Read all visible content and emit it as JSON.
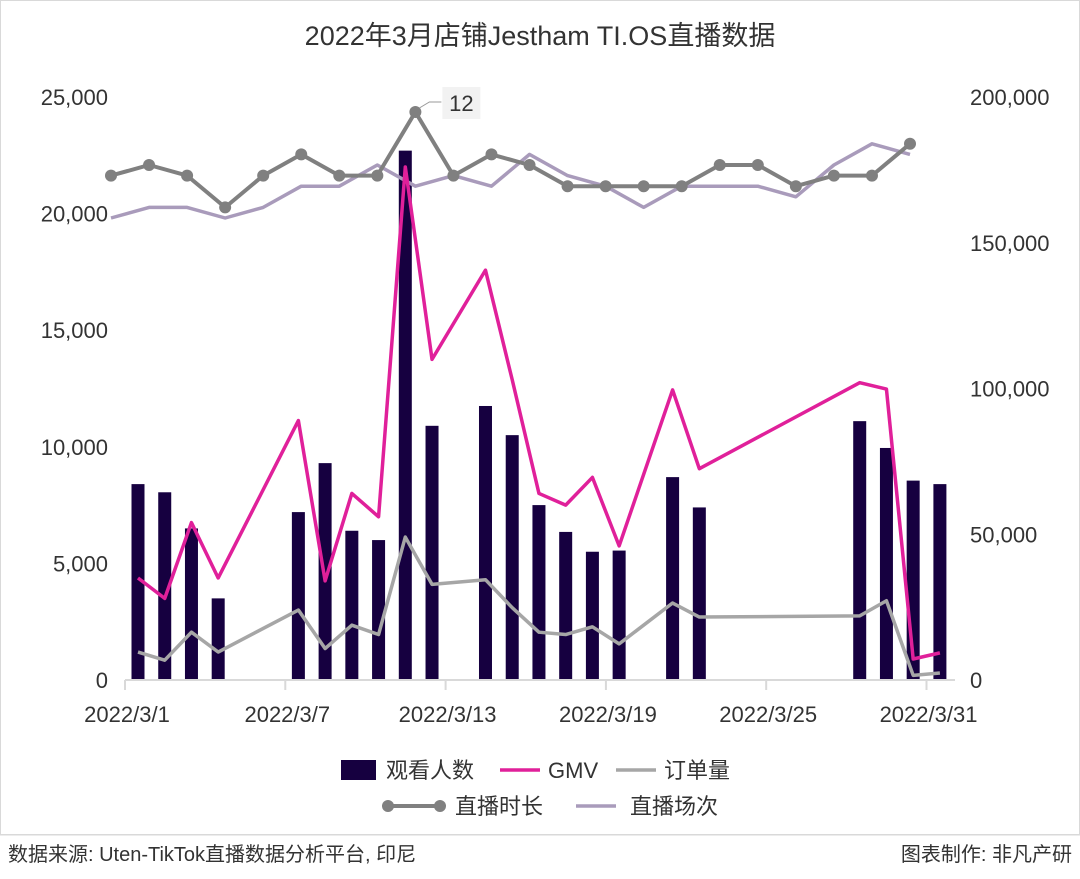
{
  "chart_data": {
    "type": "bar+line",
    "title": "2022年3月店铺Jestham TI.OS直播数据",
    "x_tick_labels": [
      "2022/3/1",
      "2022/3/7",
      "2022/3/13",
      "2022/3/19",
      "2022/3/25",
      "2022/3/31"
    ],
    "left_axis": {
      "ylim": [
        0,
        25000
      ],
      "tick_labels": [
        "0",
        "5,000",
        "10,000",
        "15,000",
        "20,000",
        "25,000"
      ]
    },
    "right_axis": {
      "ylim": [
        0,
        200000
      ],
      "tick_labels": [
        "0",
        "50,000",
        "100,000",
        "150,000",
        "200,000"
      ]
    },
    "days": [
      1,
      2,
      3,
      4,
      7,
      8,
      9,
      10,
      11,
      12,
      14,
      15,
      16,
      17,
      18,
      19,
      21,
      22,
      28,
      29,
      30,
      31
    ],
    "series": [
      {
        "name": "观看人数",
        "type": "bar",
        "axis": "left",
        "color": "#160040",
        "values": [
          8400,
          8050,
          6500,
          3500,
          7200,
          9300,
          6400,
          6000,
          22700,
          10900,
          11750,
          10500,
          7500,
          6350,
          5500,
          5550,
          8700,
          7400,
          11100,
          9950,
          8550,
          8400
        ]
      },
      {
        "name": "GMV",
        "type": "line",
        "axis": "right",
        "color": "#e0209a",
        "values": [
          35000,
          28000,
          54000,
          35000,
          89000,
          34000,
          64000,
          56000,
          176000,
          110000,
          140600,
          103000,
          64000,
          60000,
          69500,
          46000,
          99500,
          72500,
          102000,
          99800,
          7200,
          9300
        ]
      },
      {
        "name": "订单量",
        "type": "line",
        "axis": "left",
        "color": "#a6a6a6",
        "values": [
          1200,
          850,
          2050,
          1200,
          3000,
          1350,
          2350,
          1950,
          6130,
          4100,
          4300,
          3100,
          2050,
          1950,
          2280,
          1550,
          3300,
          2700,
          2750,
          3400,
          200,
          300
        ]
      },
      {
        "name": "直播时长",
        "type": "line-markers",
        "axis": "hidden",
        "color": "#808080",
        "values": [
          6,
          7,
          6,
          3,
          6,
          8,
          6,
          6,
          12,
          6,
          8,
          7,
          5,
          5,
          5,
          5,
          7,
          7,
          5,
          6,
          6,
          9
        ],
        "data_labels": [
          {
            "index": 8,
            "text": "12"
          }
        ]
      },
      {
        "name": "直播场次",
        "type": "line",
        "axis": "hidden",
        "color": "#a99bbb",
        "values": [
          2,
          3,
          3,
          2,
          3,
          5,
          5,
          7,
          5,
          6,
          5,
          8,
          6,
          5,
          3,
          5,
          5,
          5,
          4,
          7,
          9,
          8
        ]
      }
    ],
    "legend": "bottom",
    "grid": false
  },
  "footer": {
    "source": "数据来源: Uten-TikTok直播数据分析平台, 印尼",
    "credit": "图表制作: 非凡产研"
  }
}
